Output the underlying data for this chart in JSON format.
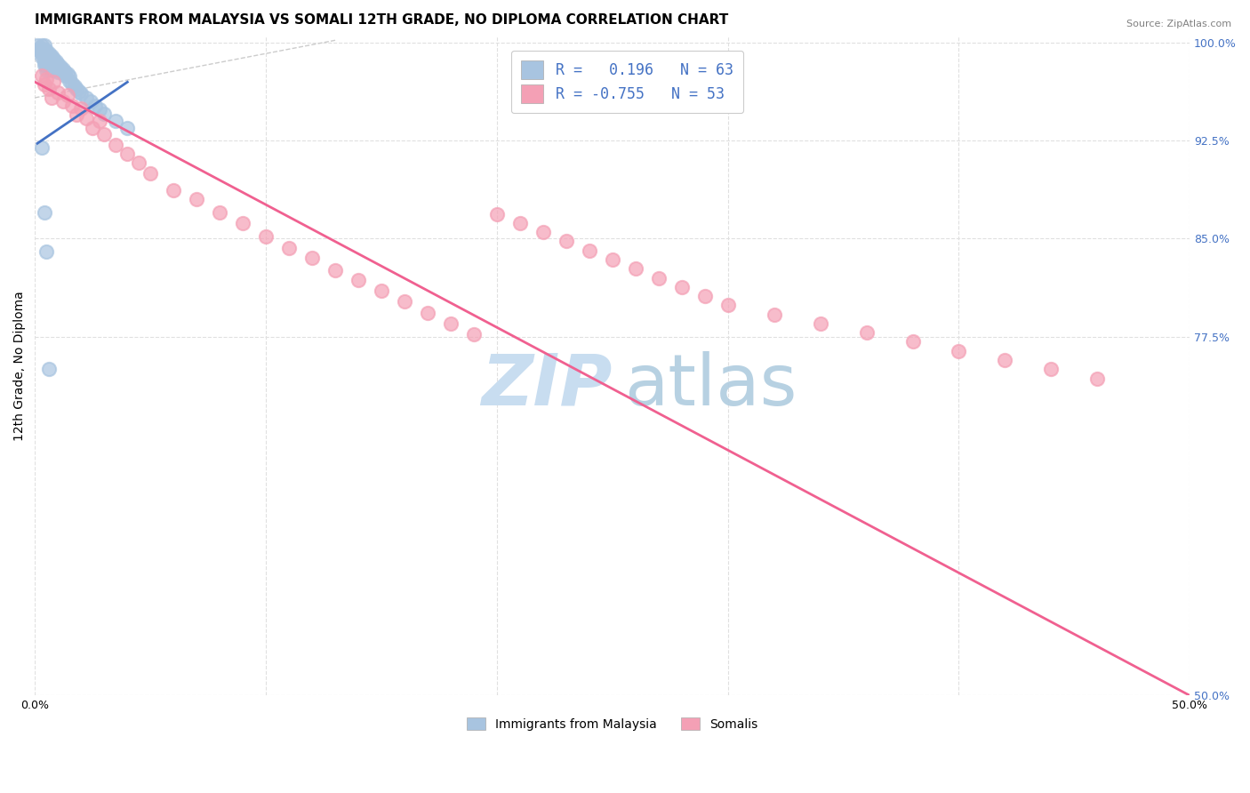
{
  "title": "IMMIGRANTS FROM MALAYSIA VS SOMALI 12TH GRADE, NO DIPLOMA CORRELATION CHART",
  "source": "Source: ZipAtlas.com",
  "ylabel": "12th Grade, No Diploma",
  "xlim": [
    0.0,
    0.5
  ],
  "ylim": [
    0.5,
    1.005
  ],
  "xticks": [
    0.0,
    0.1,
    0.2,
    0.3,
    0.4,
    0.5
  ],
  "xticklabels": [
    "0.0%",
    "",
    "",
    "",
    "",
    "50.0%"
  ],
  "yticks": [
    0.5,
    0.775,
    0.85,
    0.925,
    1.0
  ],
  "yticklabels": [
    "50.0%",
    "77.5%",
    "85.0%",
    "92.5%",
    "100.0%"
  ],
  "malaysia_R": 0.196,
  "malaysia_N": 63,
  "somali_R": -0.755,
  "somali_N": 53,
  "malaysia_color": "#a8c4e0",
  "somali_color": "#f4a0b5",
  "malaysia_line_color": "#4472c4",
  "somali_line_color": "#f06090",
  "diagonal_color": "#cccccc",
  "watermark_zip_color": "#c8ddf0",
  "watermark_atlas_color": "#b0ccdf",
  "background_color": "#ffffff",
  "grid_color": "#e0e0e0",
  "title_fontsize": 11,
  "axis_label_fontsize": 10,
  "tick_fontsize": 9,
  "right_tick_color": "#4472c4",
  "legend_text_color": "#4472c4",
  "malaysia_scatter_x": [
    0.001,
    0.002,
    0.002,
    0.003,
    0.003,
    0.003,
    0.003,
    0.004,
    0.004,
    0.004,
    0.004,
    0.004,
    0.004,
    0.005,
    0.005,
    0.005,
    0.005,
    0.005,
    0.005,
    0.006,
    0.006,
    0.006,
    0.006,
    0.006,
    0.007,
    0.007,
    0.007,
    0.007,
    0.008,
    0.008,
    0.008,
    0.008,
    0.009,
    0.009,
    0.009,
    0.01,
    0.01,
    0.01,
    0.011,
    0.011,
    0.012,
    0.012,
    0.013,
    0.013,
    0.014,
    0.015,
    0.015,
    0.016,
    0.017,
    0.018,
    0.019,
    0.02,
    0.022,
    0.024,
    0.026,
    0.028,
    0.03,
    0.035,
    0.04,
    0.003,
    0.004,
    0.005,
    0.006
  ],
  "malaysia_scatter_y": [
    0.998,
    0.996,
    0.994,
    0.998,
    0.995,
    0.992,
    0.989,
    0.998,
    0.995,
    0.992,
    0.989,
    0.986,
    0.983,
    0.994,
    0.991,
    0.988,
    0.985,
    0.982,
    0.979,
    0.992,
    0.989,
    0.986,
    0.983,
    0.98,
    0.99,
    0.987,
    0.984,
    0.981,
    0.988,
    0.985,
    0.982,
    0.979,
    0.986,
    0.983,
    0.98,
    0.984,
    0.981,
    0.978,
    0.982,
    0.979,
    0.98,
    0.977,
    0.978,
    0.975,
    0.976,
    0.974,
    0.971,
    0.969,
    0.967,
    0.965,
    0.963,
    0.961,
    0.958,
    0.955,
    0.952,
    0.949,
    0.946,
    0.94,
    0.935,
    0.92,
    0.87,
    0.84,
    0.75
  ],
  "somali_scatter_x": [
    0.003,
    0.004,
    0.005,
    0.006,
    0.007,
    0.008,
    0.01,
    0.012,
    0.014,
    0.016,
    0.018,
    0.02,
    0.022,
    0.025,
    0.028,
    0.03,
    0.035,
    0.04,
    0.045,
    0.05,
    0.06,
    0.07,
    0.08,
    0.09,
    0.1,
    0.11,
    0.12,
    0.13,
    0.14,
    0.15,
    0.16,
    0.17,
    0.18,
    0.19,
    0.2,
    0.21,
    0.22,
    0.23,
    0.24,
    0.25,
    0.26,
    0.27,
    0.28,
    0.29,
    0.3,
    0.32,
    0.34,
    0.36,
    0.38,
    0.4,
    0.42,
    0.44,
    0.46
  ],
  "somali_scatter_y": [
    0.975,
    0.968,
    0.972,
    0.965,
    0.958,
    0.97,
    0.962,
    0.955,
    0.96,
    0.952,
    0.945,
    0.95,
    0.942,
    0.935,
    0.94,
    0.93,
    0.922,
    0.915,
    0.908,
    0.9,
    0.887,
    0.88,
    0.87,
    0.862,
    0.852,
    0.843,
    0.835,
    0.826,
    0.818,
    0.81,
    0.802,
    0.793,
    0.785,
    0.777,
    0.869,
    0.862,
    0.855,
    0.848,
    0.841,
    0.834,
    0.827,
    0.82,
    0.813,
    0.806,
    0.799,
    0.792,
    0.785,
    0.778,
    0.771,
    0.764,
    0.757,
    0.75,
    0.743
  ],
  "malaysia_trend_x": [
    0.001,
    0.04
  ],
  "malaysia_trend_y": [
    0.923,
    0.97
  ],
  "somali_trend_x": [
    0.0,
    0.5
  ],
  "somali_trend_y": [
    0.97,
    0.5
  ]
}
